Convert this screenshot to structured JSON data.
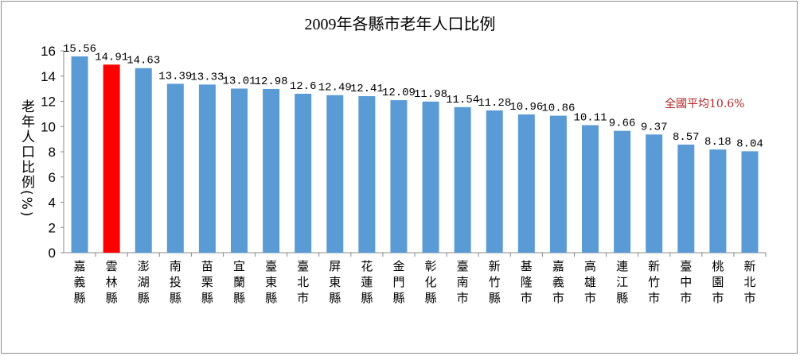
{
  "chart_data": {
    "type": "bar",
    "title": "2009年各縣市老年人口比例",
    "ylabel": "老年人口比例(%)",
    "xlabel": "",
    "ylim": [
      0,
      16
    ],
    "yticks": [
      0,
      2,
      4,
      6,
      8,
      10,
      12,
      14,
      16
    ],
    "grid": false,
    "annotation": "全國平均10.6%",
    "colors": {
      "bar": "#5b9bd5",
      "highlight": "#ff0000",
      "annotation": "#b22222"
    },
    "highlight_index": 1,
    "categories": [
      "嘉義縣",
      "雲林縣",
      "澎湖縣",
      "南投縣",
      "苗栗縣",
      "宜蘭縣",
      "臺東縣",
      "臺北市",
      "屏東縣",
      "花蓮縣",
      "金門縣",
      "彰化縣",
      "臺南市",
      "新竹縣",
      "基隆市",
      "嘉義市",
      "高雄市",
      "連江縣",
      "新竹市",
      "臺中市",
      "桃園市",
      "新北市"
    ],
    "value_labels": [
      "15.56",
      "14.91",
      "14.63",
      "13.39",
      "13.33",
      "13.01",
      "12.98",
      "12.6",
      "12.49",
      "12.41",
      "12.09",
      "11.98",
      "11.54",
      "11.28",
      "10.96",
      "10.86",
      "10.11",
      "9.66",
      "9.37",
      "8.57",
      "8.18",
      "8.04"
    ],
    "values": [
      15.56,
      14.91,
      14.63,
      13.39,
      13.33,
      13.01,
      12.98,
      12.6,
      12.49,
      12.41,
      12.09,
      11.98,
      11.54,
      11.28,
      10.96,
      10.86,
      10.11,
      9.66,
      9.37,
      8.57,
      8.18,
      8.04
    ]
  }
}
